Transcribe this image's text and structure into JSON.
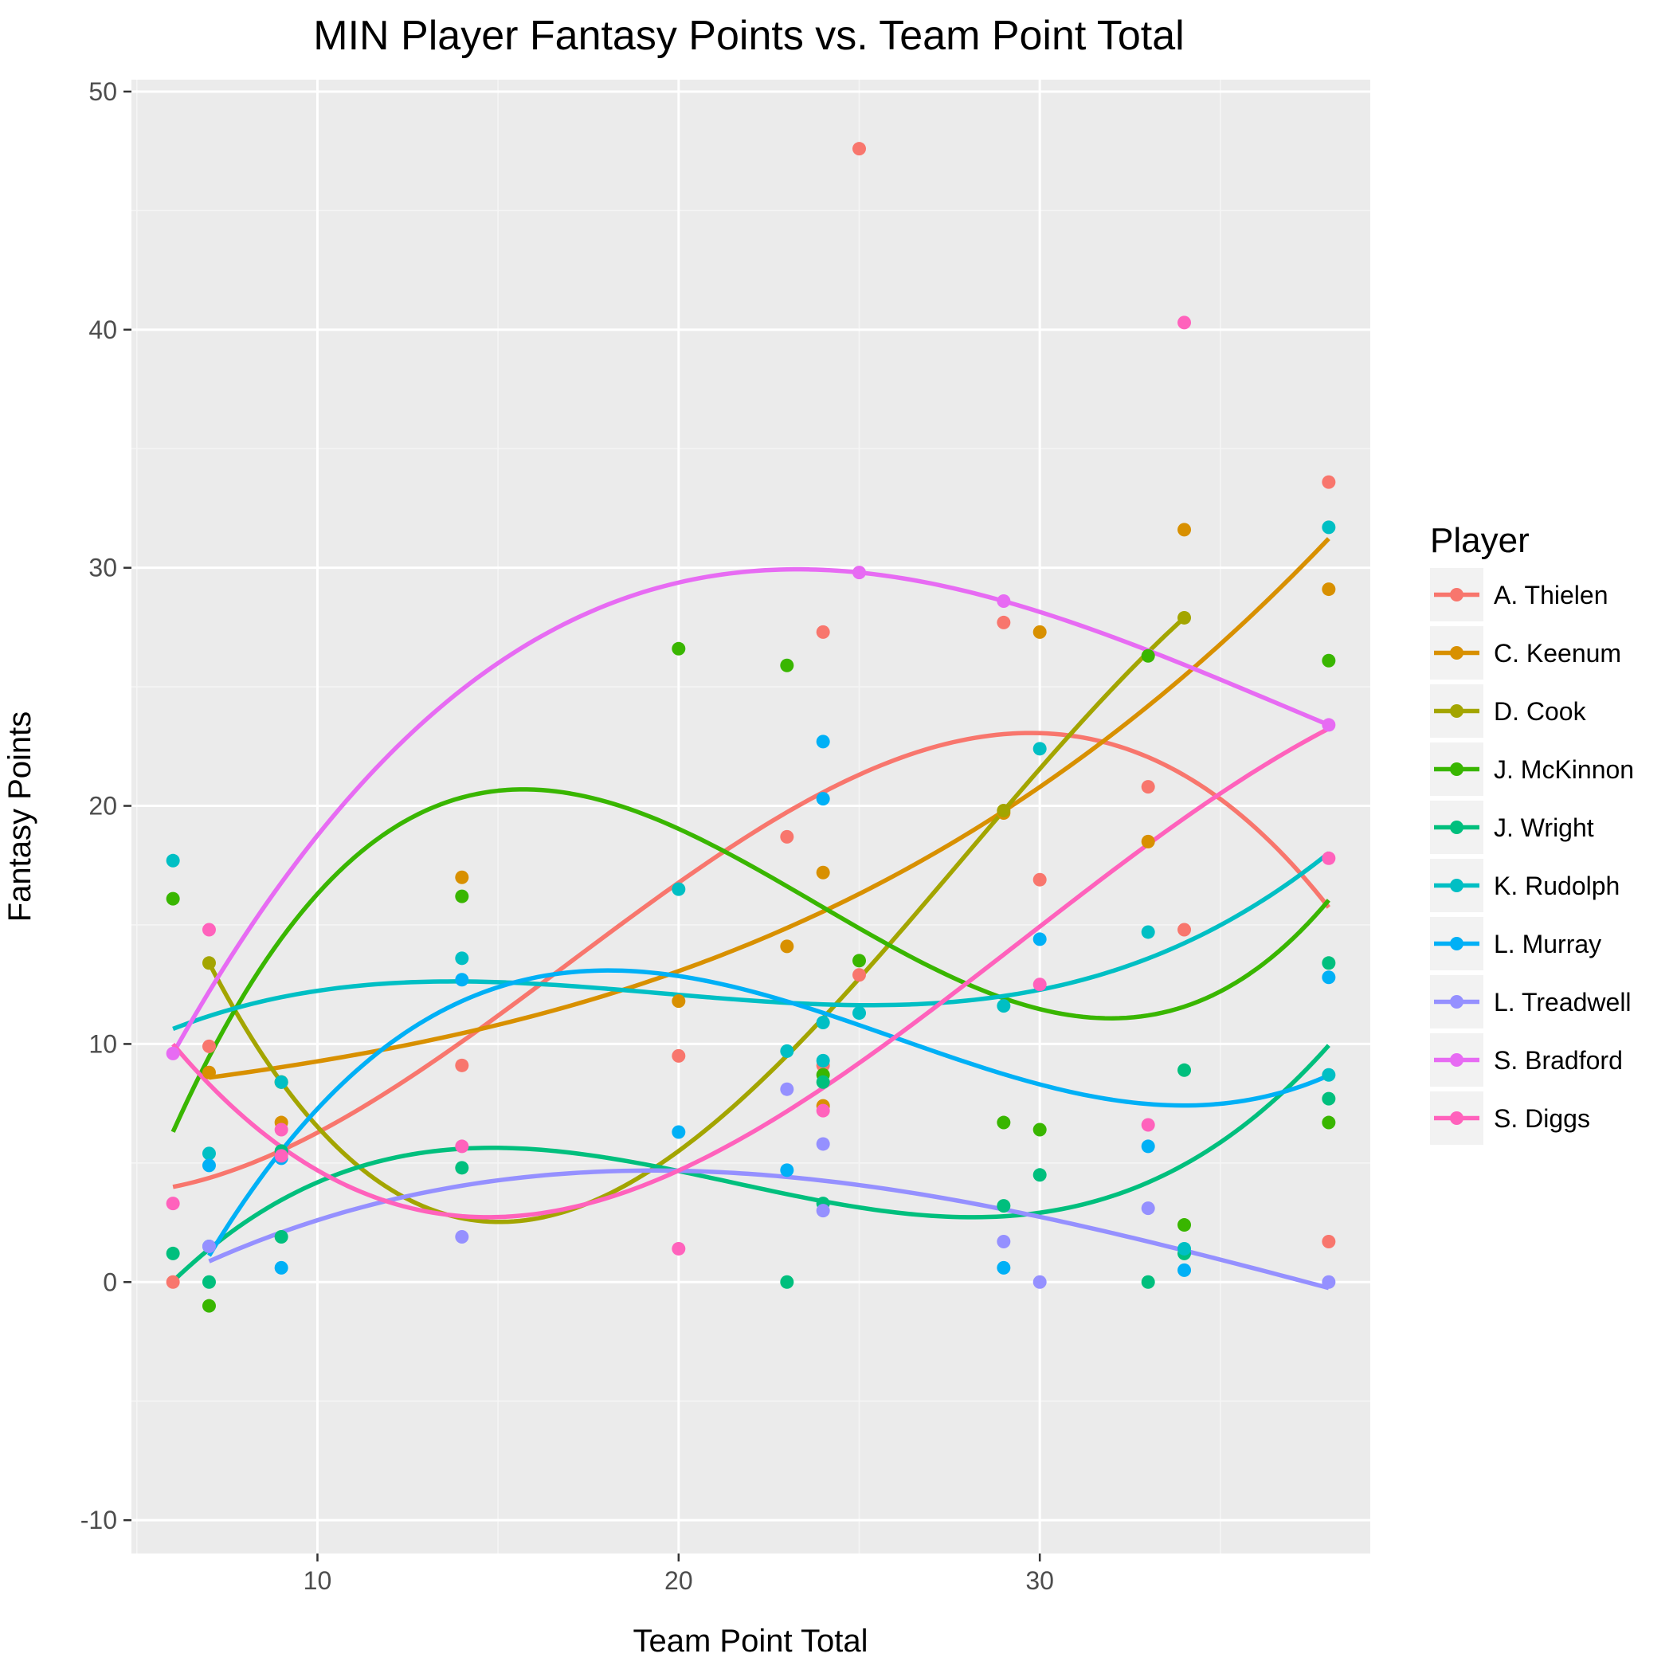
{
  "chart_data": {
    "type": "scatter",
    "title": "MIN Player Fantasy Points vs. Team Point Total",
    "xlabel": "Team Point Total",
    "ylabel": "Fantasy Points",
    "xlim": [
      4.85,
      39.15
    ],
    "ylim": [
      -11.4,
      50.5
    ],
    "x_ticks": [
      10,
      20,
      30
    ],
    "y_ticks": [
      -10,
      0,
      10,
      20,
      30,
      40,
      50
    ],
    "grid": true,
    "legend": {
      "title": "Player",
      "position": "right"
    },
    "smooth": "cubic",
    "series": [
      {
        "name": "A. Thielen",
        "color": "#F8766D",
        "points": [
          [
            6,
            0
          ],
          [
            7,
            9.9
          ],
          [
            14,
            9.1
          ],
          [
            20,
            9.5
          ],
          [
            23,
            18.7
          ],
          [
            24,
            27.3
          ],
          [
            24,
            9.1
          ],
          [
            25,
            47.6
          ],
          [
            25,
            12.9
          ],
          [
            29,
            27.7
          ],
          [
            30,
            16.9
          ],
          [
            33,
            20.8
          ],
          [
            34,
            14.8
          ],
          [
            38,
            33.6
          ],
          [
            38,
            1.7
          ]
        ]
      },
      {
        "name": "C. Keenum",
        "color": "#D89000",
        "points": [
          [
            7,
            8.8
          ],
          [
            9,
            8.4
          ],
          [
            9,
            6.7
          ],
          [
            14,
            17
          ],
          [
            20,
            11.8
          ],
          [
            23,
            14.1
          ],
          [
            24,
            17.2
          ],
          [
            24,
            7.4
          ],
          [
            29,
            19.7
          ],
          [
            30,
            27.3
          ],
          [
            33,
            18.5
          ],
          [
            34,
            31.6
          ],
          [
            38,
            29.1
          ]
        ]
      },
      {
        "name": "D. Cook",
        "color": "#A3A500",
        "points": [
          [
            7,
            13.4
          ],
          [
            9,
            8.4
          ],
          [
            29,
            19.8
          ],
          [
            34,
            27.9
          ]
        ]
      },
      {
        "name": "J. McKinnon",
        "color": "#39B600",
        "points": [
          [
            6,
            16.1
          ],
          [
            7,
            -1
          ],
          [
            14,
            16.2
          ],
          [
            20,
            26.6
          ],
          [
            23,
            25.9
          ],
          [
            24,
            8.7
          ],
          [
            25,
            13.5
          ],
          [
            29,
            6.7
          ],
          [
            30,
            6.4
          ],
          [
            33,
            26.3
          ],
          [
            34,
            2.4
          ],
          [
            38,
            26.1
          ],
          [
            38,
            6.7
          ]
        ]
      },
      {
        "name": "J. Wright",
        "color": "#00BF7D",
        "points": [
          [
            6,
            1.2
          ],
          [
            7,
            0
          ],
          [
            9,
            1.9
          ],
          [
            9,
            5.5
          ],
          [
            14,
            4.8
          ],
          [
            23,
            0
          ],
          [
            24,
            8.4
          ],
          [
            24,
            3.3
          ],
          [
            29,
            3.2
          ],
          [
            30,
            4.5
          ],
          [
            33,
            0
          ],
          [
            34,
            8.9
          ],
          [
            34,
            1.2
          ],
          [
            38,
            7.7
          ],
          [
            38,
            13.4
          ]
        ]
      },
      {
        "name": "K. Rudolph",
        "color": "#00BFC4",
        "points": [
          [
            6,
            17.7
          ],
          [
            7,
            5.4
          ],
          [
            9,
            8.4
          ],
          [
            14,
            13.6
          ],
          [
            20,
            16.5
          ],
          [
            23,
            9.7
          ],
          [
            24,
            10.9
          ],
          [
            24,
            9.3
          ],
          [
            25,
            11.3
          ],
          [
            29,
            11.6
          ],
          [
            30,
            22.4
          ],
          [
            33,
            14.7
          ],
          [
            34,
            1.4
          ],
          [
            38,
            31.7
          ],
          [
            38,
            8.7
          ]
        ]
      },
      {
        "name": "L. Murray",
        "color": "#00B0F6",
        "points": [
          [
            7,
            4.9
          ],
          [
            7,
            1.5
          ],
          [
            9,
            0.6
          ],
          [
            9,
            5.2
          ],
          [
            14,
            12.7
          ],
          [
            20,
            6.3
          ],
          [
            23,
            4.7
          ],
          [
            24,
            22.7
          ],
          [
            24,
            20.3
          ],
          [
            29,
            0.6
          ],
          [
            30,
            14.4
          ],
          [
            33,
            5.7
          ],
          [
            34,
            0.5
          ],
          [
            38,
            12.8
          ]
        ]
      },
      {
        "name": "L. Treadwell",
        "color": "#9590FF",
        "points": [
          [
            7,
            1.5
          ],
          [
            14,
            1.9
          ],
          [
            23,
            8.1
          ],
          [
            24,
            5.8
          ],
          [
            24,
            3
          ],
          [
            29,
            1.7
          ],
          [
            30,
            0
          ],
          [
            33,
            3.1
          ],
          [
            38,
            0
          ]
        ]
      },
      {
        "name": "S. Bradford",
        "color": "#E76BF3",
        "points": [
          [
            6,
            9.6
          ],
          [
            25,
            29.8
          ],
          [
            29,
            28.6
          ],
          [
            38,
            23.4
          ]
        ]
      },
      {
        "name": "S. Diggs",
        "color": "#FF62BC",
        "points": [
          [
            6,
            3.3
          ],
          [
            7,
            14.8
          ],
          [
            9,
            6.4
          ],
          [
            9,
            5.3
          ],
          [
            14,
            5.7
          ],
          [
            20,
            1.4
          ],
          [
            24,
            7.2
          ],
          [
            30,
            12.5
          ],
          [
            33,
            6.6
          ],
          [
            34,
            40.3
          ],
          [
            38,
            17.8
          ]
        ]
      }
    ]
  }
}
